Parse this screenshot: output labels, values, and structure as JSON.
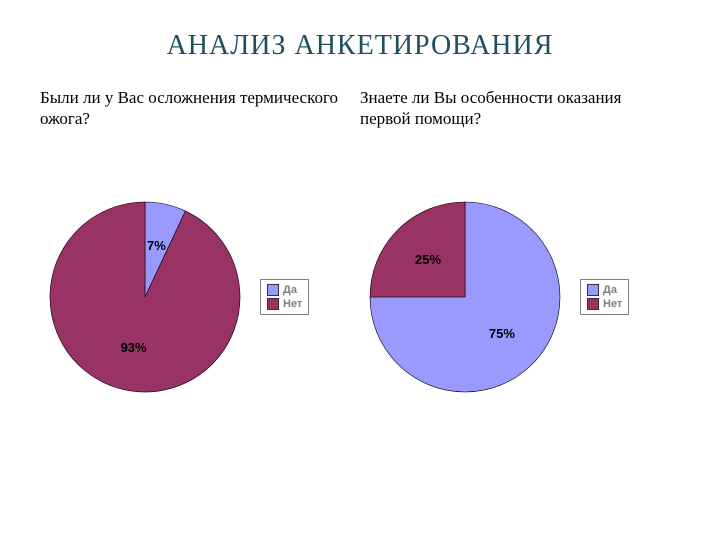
{
  "title": "АНАЛИЗ АНКЕТИРОВАНИЯ",
  "title_color": "#205060",
  "title_fontsize": 28,
  "background_color": "#ffffff",
  "charts": [
    {
      "type": "pie",
      "question": "Были ли у Вас осложнения термического ожога?",
      "slices": [
        {
          "label": "Да",
          "value": 7,
          "display": "7%",
          "color": "#9999ff"
        },
        {
          "label": "Нет",
          "value": 93,
          "display": "93%",
          "color": "#993366"
        }
      ],
      "legend": [
        {
          "text": "Да",
          "color": "#9999ff"
        },
        {
          "text": "Нет",
          "color": "#993366"
        }
      ],
      "radius": 95,
      "start_angle_deg": -90,
      "label_fontsize": 13,
      "label_fontweight": "bold",
      "label_color": "#000000",
      "legend_font": "Arial",
      "legend_fontsize": 11,
      "legend_color": "#808080",
      "legend_border": "#808080"
    },
    {
      "type": "pie",
      "question": "Знаете ли Вы особенности оказания первой помощи?",
      "slices": [
        {
          "label": "Да",
          "value": 75,
          "display": "75%",
          "color": "#9999ff"
        },
        {
          "label": "Нет",
          "value": 25,
          "display": "25%",
          "color": "#993366"
        }
      ],
      "legend": [
        {
          "text": "Да",
          "color": "#9999ff"
        },
        {
          "text": "Нет",
          "color": "#993366"
        }
      ],
      "radius": 95,
      "start_angle_deg": -90,
      "label_fontsize": 13,
      "label_fontweight": "bold",
      "label_color": "#000000",
      "legend_font": "Arial",
      "legend_fontsize": 11,
      "legend_color": "#808080",
      "legend_border": "#808080"
    }
  ]
}
